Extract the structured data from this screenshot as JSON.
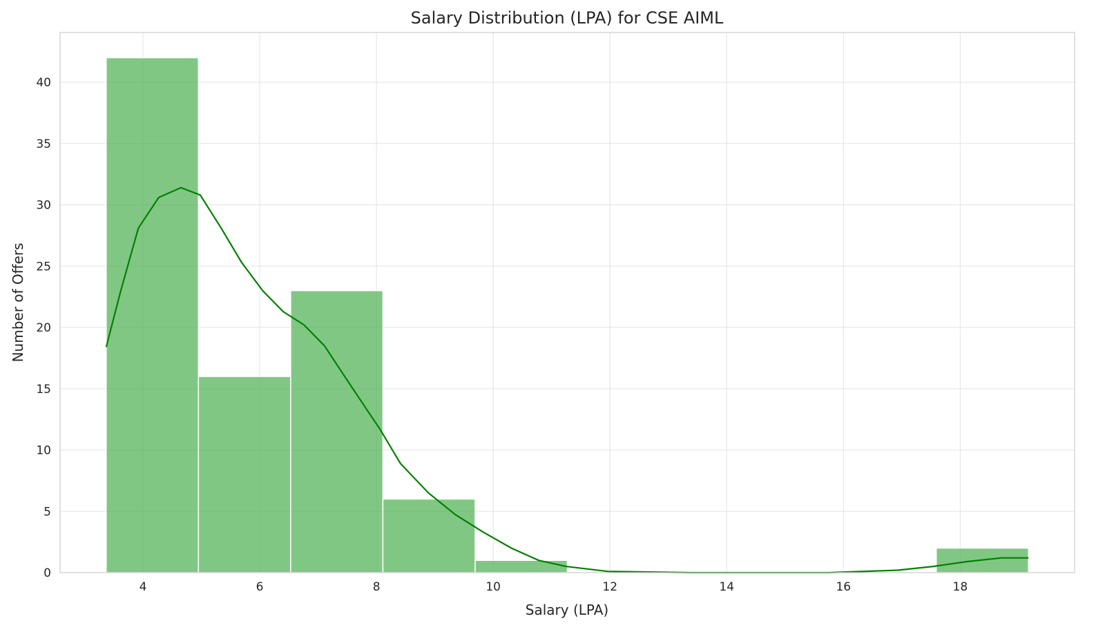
{
  "chart_data": {
    "type": "bar",
    "title": "Salary Distribution (LPA) for CSE AIML",
    "xlabel": "Salary (LPA)",
    "ylabel": "Number of Offers",
    "xlim": [
      2.58,
      19.96
    ],
    "ylim": [
      0,
      44.06
    ],
    "xticks": [
      4,
      6,
      8,
      10,
      12,
      14,
      16,
      18
    ],
    "yticks": [
      0,
      5,
      10,
      15,
      20,
      25,
      30,
      35,
      40
    ],
    "grid": true,
    "bar_color": "#4caf50",
    "line_color": "#008000",
    "bins": [
      {
        "start": 3.37,
        "end": 4.95,
        "count": 42
      },
      {
        "start": 4.95,
        "end": 6.53,
        "count": 16
      },
      {
        "start": 6.53,
        "end": 8.11,
        "count": 23
      },
      {
        "start": 8.11,
        "end": 9.69,
        "count": 6
      },
      {
        "start": 9.69,
        "end": 11.27,
        "count": 1
      },
      {
        "start": 11.27,
        "end": 12.85,
        "count": 0
      },
      {
        "start": 12.85,
        "end": 14.43,
        "count": 0
      },
      {
        "start": 14.43,
        "end": 16.01,
        "count": 0
      },
      {
        "start": 16.01,
        "end": 17.59,
        "count": 0
      },
      {
        "start": 17.59,
        "end": 19.17,
        "count": 2
      }
    ],
    "kde": {
      "x": [
        3.37,
        3.62,
        3.92,
        4.27,
        4.65,
        4.98,
        5.34,
        5.69,
        6.05,
        6.4,
        6.76,
        7.11,
        7.47,
        7.82,
        8.06,
        8.41,
        8.89,
        9.36,
        9.83,
        10.31,
        10.78,
        11.25,
        11.96,
        13.38,
        15.75,
        16.93,
        17.53,
        18.12,
        18.71,
        19.17
      ],
      "y": [
        18.4,
        23.0,
        28.1,
        30.6,
        31.4,
        30.8,
        28.1,
        25.3,
        23.0,
        21.3,
        20.2,
        18.5,
        15.9,
        13.4,
        11.7,
        8.9,
        6.5,
        4.7,
        3.3,
        2.0,
        1.0,
        0.5,
        0.1,
        0,
        0,
        0.2,
        0.5,
        0.9,
        1.2,
        1.2
      ]
    }
  }
}
